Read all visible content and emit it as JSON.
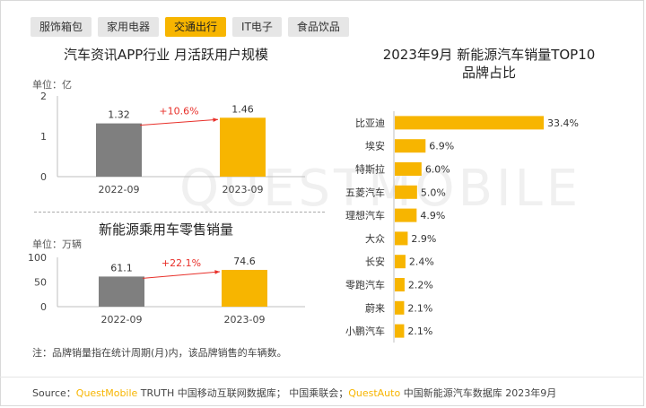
{
  "tabs": [
    {
      "label": "服饰箱包",
      "active": false
    },
    {
      "label": "家用电器",
      "active": false
    },
    {
      "label": "交通出行",
      "active": true
    },
    {
      "label": "IT电子",
      "active": false
    },
    {
      "label": "食品饮品",
      "active": false
    }
  ],
  "watermark": "QUESTMOBILE",
  "note": "注：品牌销量指在统计周期(月)内，该品牌销售的车辆数。",
  "source": {
    "prefix": "Source：",
    "brand1": "QuestMobile",
    "text1": " TRUTH 中国移动互联网数据库；  中国乘联会；",
    "brand2": "QuestAuto",
    "text2": " 中国新能源汽车数据库 2023年9月"
  },
  "colors": {
    "accent": "#f7b500",
    "gray_bar": "#7f7f7f",
    "growth_red": "#e8302a",
    "tab_bg": "#e6e6e6"
  },
  "chart_data": [
    {
      "type": "bar",
      "title": "汽车资讯APP行业 月活跃用户规模",
      "unit_label": "单位：亿",
      "categories": [
        "2022-09",
        "2023-09"
      ],
      "values": [
        1.32,
        1.46
      ],
      "ylim": [
        0,
        2
      ],
      "yticks": [
        0,
        1,
        2
      ],
      "growth_label": "+10.6%",
      "colors": [
        "#7f7f7f",
        "#f7b500"
      ]
    },
    {
      "type": "bar",
      "title": "新能源乘用车零售销量",
      "unit_label": "单位：万辆",
      "categories": [
        "2022-09",
        "2023-09"
      ],
      "values": [
        61.1,
        74.6
      ],
      "ylim": [
        0,
        100
      ],
      "yticks": [
        0,
        50,
        100
      ],
      "growth_label": "+22.1%",
      "colors": [
        "#7f7f7f",
        "#f7b500"
      ]
    },
    {
      "type": "bar",
      "orientation": "horizontal",
      "title": "2023年9月 新能源汽车销量TOP10",
      "subtitle": "品牌占比",
      "categories": [
        "比亚迪",
        "埃安",
        "特斯拉",
        "五菱汽车",
        "理想汽车",
        "大众",
        "长安",
        "零跑汽车",
        "蔚来",
        "小鹏汽车"
      ],
      "values": [
        33.4,
        6.9,
        6.0,
        5.0,
        4.9,
        2.9,
        2.4,
        2.2,
        2.1,
        2.1
      ],
      "labels": [
        "33.4%",
        "6.9%",
        "6.0%",
        "5.0%",
        "4.9%",
        "2.9%",
        "2.4%",
        "2.2%",
        "2.1%",
        "2.1%"
      ],
      "color": "#f7b500"
    }
  ]
}
